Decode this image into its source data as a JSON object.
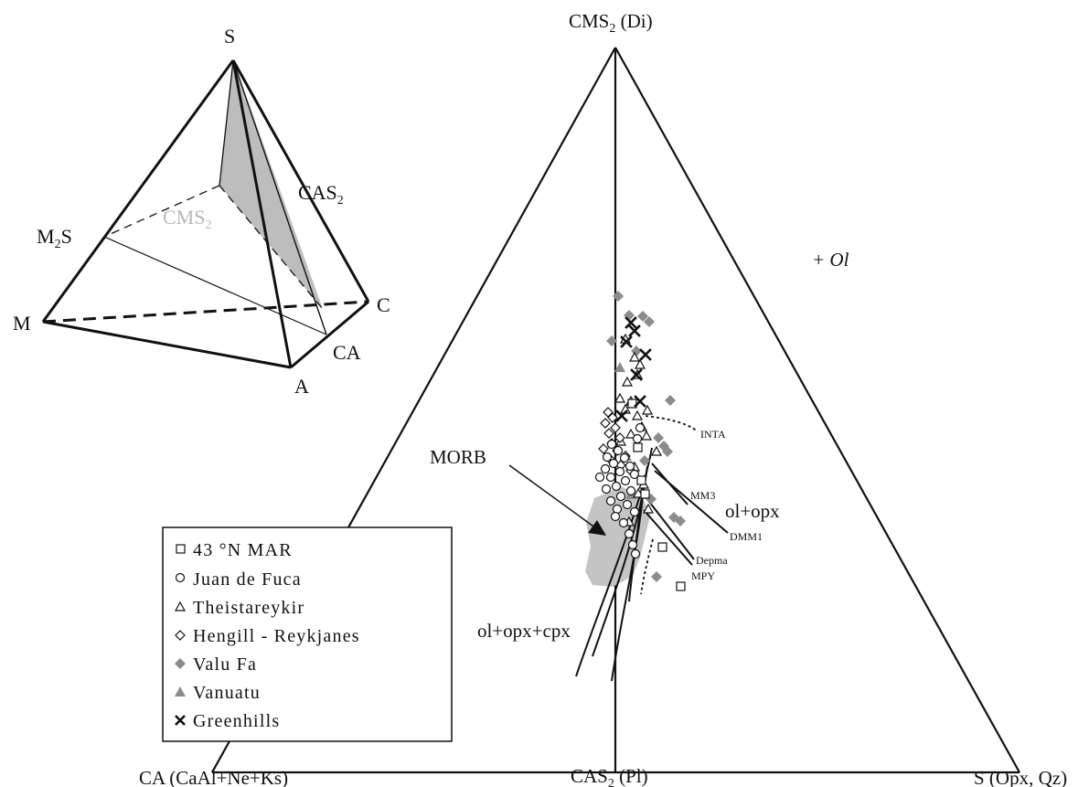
{
  "tetrahedron": {
    "vertex_labels": {
      "S": "S",
      "M": "M",
      "C": "C",
      "A": "A",
      "CA": "CA",
      "M2S_main": "M",
      "M2S_sub": "2",
      "M2S_tail": "S",
      "CAS2_main": "CAS",
      "CAS2_sub": "2",
      "CMS2_main": "CMS",
      "CMS2_sub": "2"
    },
    "colors": {
      "plane": "#bdbdbd",
      "cms2_label": "#b8b8b8"
    }
  },
  "ternary": {
    "apex_label_main": "CMS",
    "apex_label_sub": "2",
    "apex_label_tail": " (Di)",
    "left_label": "CA (CaAl+Ne+Ks)",
    "bottom_label_main": "CAS",
    "bottom_label_sub": "2",
    "bottom_label_tail": " (Pl)",
    "right_label": "S (Opx, Qz)",
    "field_label": "+ Ol",
    "morb_label": "MORB",
    "cotectic_labels": {
      "ol_opx": "ol+opx",
      "ol_opx_cpx": "ol+opx+cpx",
      "INTA": "INTA",
      "MM3": "MM3",
      "DMM1": "DMM1",
      "Depma": "Depma",
      "MPY": "MPY"
    },
    "colors": {
      "morb_field": "#c4c4c4",
      "filled_symbol": "#8c8c8c"
    }
  },
  "legend": {
    "items": [
      {
        "symbol": "open-square",
        "label": "43 °N MAR"
      },
      {
        "symbol": "open-circle",
        "label": "Juan de Fuca"
      },
      {
        "symbol": "open-triangle",
        "label": "Theistareykir"
      },
      {
        "symbol": "open-diamond",
        "label": "Hengill - Reykjanes"
      },
      {
        "symbol": "filled-diamond",
        "label": "Valu Fa"
      },
      {
        "symbol": "filled-triangle",
        "label": "Vanuatu"
      },
      {
        "symbol": "cross",
        "label": "Greenhills"
      }
    ]
  }
}
